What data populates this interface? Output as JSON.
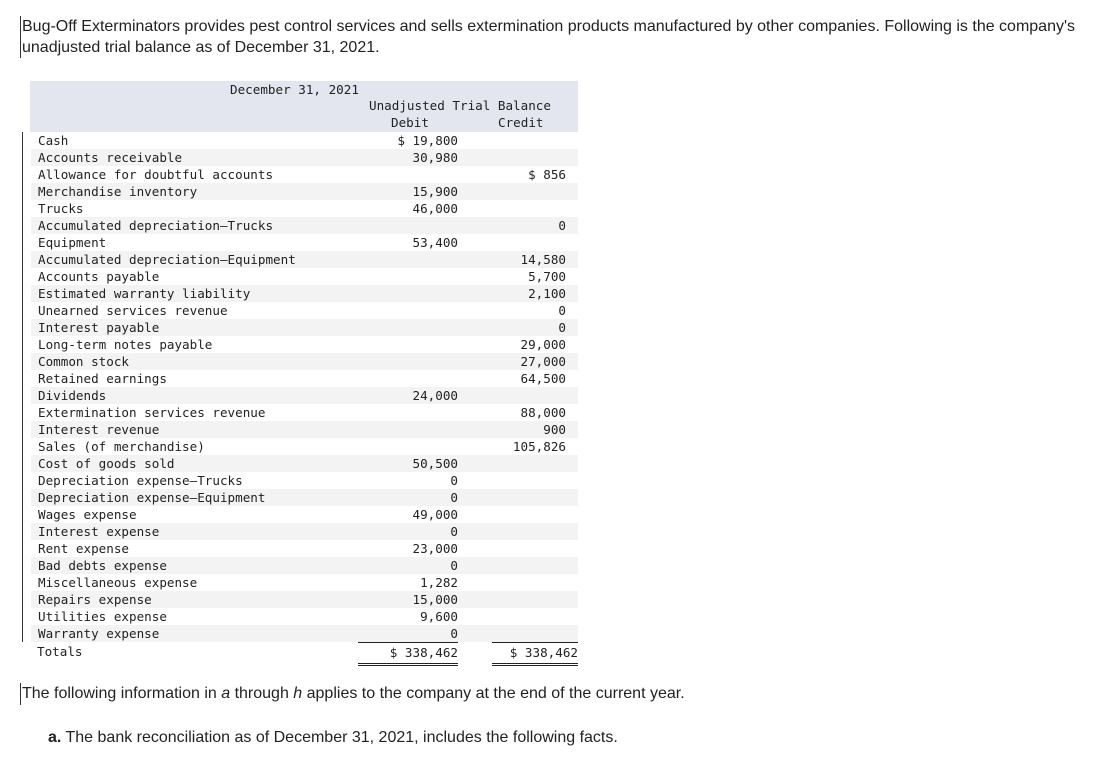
{
  "intro_text": "Bug-Off Exterminators provides pest control services and sells extermination products manufactured by other companies. Following is the company's unadjusted trial balance as of December 31, 2021.",
  "table": {
    "date_header": "December 31, 2021",
    "group_header": "Unadjusted Trial Balance",
    "debit_header": "Debit",
    "credit_header": "Credit",
    "rows": [
      {
        "account": "Cash",
        "debit": "$ 19,800",
        "credit": ""
      },
      {
        "account": "Accounts receivable",
        "debit": "30,980",
        "credit": ""
      },
      {
        "account": "Allowance for doubtful accounts",
        "debit": "",
        "credit": "$ 856"
      },
      {
        "account": "Merchandise inventory",
        "debit": "15,900",
        "credit": ""
      },
      {
        "account": "Trucks",
        "debit": "46,000",
        "credit": ""
      },
      {
        "account": "Accumulated depreciation—Trucks",
        "debit": "",
        "credit": "0"
      },
      {
        "account": "Equipment",
        "debit": "53,400",
        "credit": ""
      },
      {
        "account": "Accumulated depreciation—Equipment",
        "debit": "",
        "credit": "14,580"
      },
      {
        "account": "Accounts payable",
        "debit": "",
        "credit": "5,700"
      },
      {
        "account": "Estimated warranty liability",
        "debit": "",
        "credit": "2,100"
      },
      {
        "account": "Unearned services revenue",
        "debit": "",
        "credit": "0"
      },
      {
        "account": "Interest payable",
        "debit": "",
        "credit": "0"
      },
      {
        "account": "Long-term notes payable",
        "debit": "",
        "credit": "29,000"
      },
      {
        "account": "Common stock",
        "debit": "",
        "credit": "27,000"
      },
      {
        "account": "Retained earnings",
        "debit": "",
        "credit": "64,500"
      },
      {
        "account": "Dividends",
        "debit": "24,000",
        "credit": ""
      },
      {
        "account": "Extermination services revenue",
        "debit": "",
        "credit": "88,000"
      },
      {
        "account": "Interest revenue",
        "debit": "",
        "credit": "900"
      },
      {
        "account": "Sales (of merchandise)",
        "debit": "",
        "credit": "105,826"
      },
      {
        "account": "Cost of goods sold",
        "debit": "50,500",
        "credit": ""
      },
      {
        "account": "Depreciation expense—Trucks",
        "debit": "0",
        "credit": ""
      },
      {
        "account": "Depreciation expense—Equipment",
        "debit": "0",
        "credit": ""
      },
      {
        "account": "Wages expense",
        "debit": "49,000",
        "credit": ""
      },
      {
        "account": "Interest expense",
        "debit": "0",
        "credit": ""
      },
      {
        "account": "Rent expense",
        "debit": "23,000",
        "credit": ""
      },
      {
        "account": "Bad debts expense",
        "debit": "0",
        "credit": ""
      },
      {
        "account": "Miscellaneous expense",
        "debit": "1,282",
        "credit": ""
      },
      {
        "account": "Repairs expense",
        "debit": "15,000",
        "credit": ""
      },
      {
        "account": "Utilities expense",
        "debit": "9,600",
        "credit": ""
      },
      {
        "account": "Warranty expense",
        "debit": "0",
        "credit": ""
      }
    ],
    "totals_label": "Totals",
    "total_debit": "$ 338,462",
    "total_credit": "$ 338,462"
  },
  "following_prefix": "The following information in ",
  "following_a": "a",
  "following_mid": " through ",
  "following_h": "h",
  "following_suffix": " applies to the company at the end of the current year.",
  "item_a_marker": "a.",
  "item_a_text": " The bank reconciliation as of December 31, 2021, includes the following facts."
}
